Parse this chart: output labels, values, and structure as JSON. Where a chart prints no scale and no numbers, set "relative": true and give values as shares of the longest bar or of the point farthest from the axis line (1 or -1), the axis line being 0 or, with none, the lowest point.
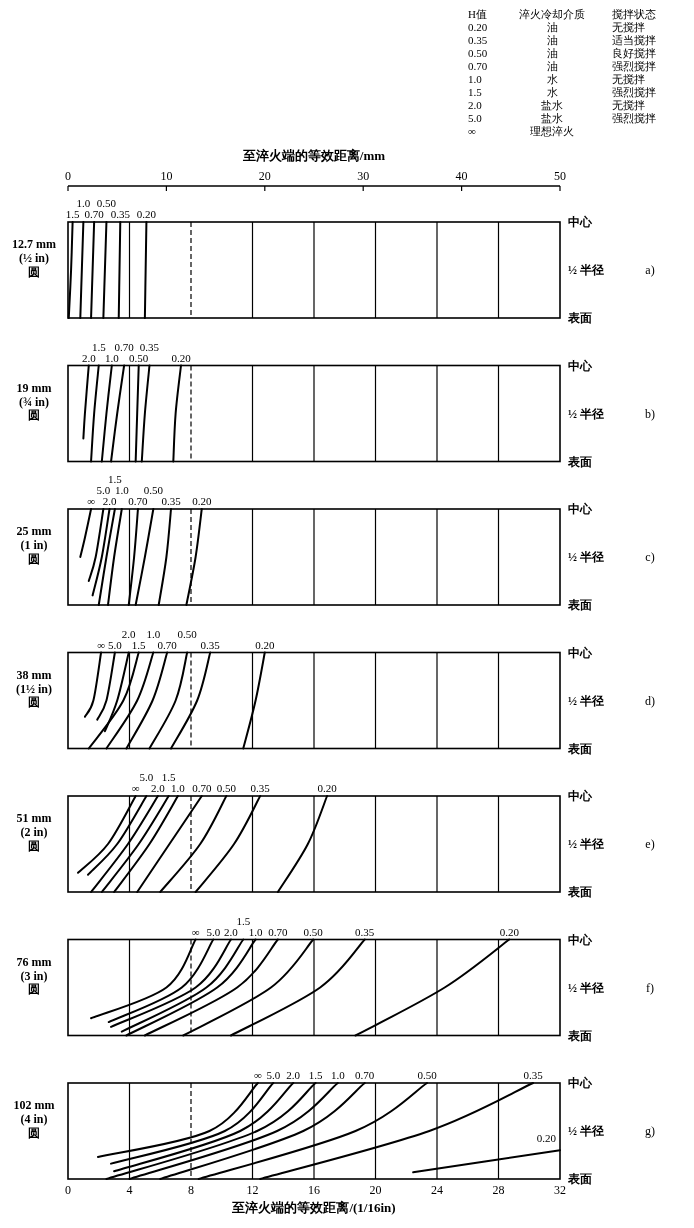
{
  "chart_data": [
    {
      "type": "other",
      "annotations": [
        "H值",
        "淬火冷却介质",
        "搅拌状态",
        "0.20",
        "油",
        "无搅拌",
        "0.35",
        "油",
        "适当搅拌",
        "0.50",
        "油",
        "良好搅拌",
        "0.70",
        "油",
        "强烈搅拌",
        "1.0",
        "水",
        "无搅拌",
        "1.5",
        "水",
        "强烈搅拌",
        "2.0",
        "盐水",
        "无搅拌",
        "5.0",
        "盐水",
        "强烈搅拌",
        "∞",
        "理想淬火"
      ]
    },
    {
      "type": "line",
      "y2label": "a)",
      "ylabel": "12.7 mm\n(½ in)\n圆",
      "x2label": "至淬火端的等效距离/mm",
      "xlim": [
        0,
        32
      ],
      "xticks": [
        0,
        4,
        8,
        12,
        16,
        20,
        24,
        28,
        32
      ],
      "x2lim": [
        0,
        50
      ],
      "x2ticks": [
        0,
        10,
        20,
        30,
        40,
        50
      ],
      "relative": true,
      "annotations": [
        "中心",
        "½ 半径",
        "表面"
      ],
      "grid": true,
      "tick_labels": false,
      "ref_lines": [
        {
          "axis": "x",
          "value": 8,
          "line_style": "dashed"
        }
      ],
      "series": [
        {
          "name": "1.5",
          "color": "#000000",
          "x": [
            0.05,
            0.2,
            0.3
          ],
          "values": [
            0,
            0.5,
            1
          ]
        },
        {
          "name": "1.0",
          "color": "#000000",
          "x": [
            0.8,
            0.9,
            1.0
          ],
          "values": [
            0,
            0.5,
            1
          ]
        },
        {
          "name": "0.70",
          "color": "#000000",
          "x": [
            1.5,
            1.6,
            1.7
          ],
          "values": [
            0,
            0.5,
            1
          ]
        },
        {
          "name": "0.50",
          "color": "#000000",
          "x": [
            2.3,
            2.4,
            2.5
          ],
          "values": [
            0,
            0.5,
            1
          ]
        },
        {
          "name": "0.35",
          "color": "#000000",
          "x": [
            3.3,
            3.35,
            3.4
          ],
          "values": [
            0,
            0.5,
            1
          ]
        },
        {
          "name": "0.20",
          "color": "#000000",
          "x": [
            5.0,
            5.05,
            5.1
          ],
          "values": [
            0,
            0.5,
            1
          ]
        }
      ]
    },
    {
      "type": "line",
      "y2label": "b)",
      "ylabel": "19 mm\n(¾ in)\n圆",
      "xlim": [
        0,
        32
      ],
      "xticks": [
        0,
        4,
        8,
        12,
        16,
        20,
        24,
        28,
        32
      ],
      "relative": true,
      "annotations": [
        "中心",
        "½ 半径",
        "表面"
      ],
      "grid": true,
      "tick_labels": false,
      "ref_lines": [
        {
          "axis": "x",
          "value": 8,
          "line_style": "dashed"
        }
      ],
      "series": [
        {
          "name": "2.0",
          "color": "#000000",
          "x": [
            1.0,
            1.1,
            1.35
          ],
          "values": [
            0.24,
            0.5,
            1
          ]
        },
        {
          "name": "1.5",
          "color": "#000000",
          "x": [
            1.5,
            1.7,
            2.0
          ],
          "values": [
            0,
            0.5,
            1
          ]
        },
        {
          "name": "1.0",
          "color": "#000000",
          "x": [
            2.2,
            2.5,
            2.85
          ],
          "values": [
            0,
            0.5,
            1
          ]
        },
        {
          "name": "0.70",
          "color": "#000000",
          "x": [
            2.8,
            3.2,
            3.65
          ],
          "values": [
            0,
            0.5,
            1
          ]
        },
        {
          "name": "0.50",
          "color": "#000000",
          "x": [
            4.4,
            4.5,
            4.6
          ],
          "values": [
            0,
            0.5,
            1
          ]
        },
        {
          "name": "0.35",
          "color": "#000000",
          "x": [
            4.8,
            5.0,
            5.3
          ],
          "values": [
            0,
            0.5,
            1
          ]
        },
        {
          "name": "0.20",
          "color": "#000000",
          "x": [
            6.85,
            7.0,
            7.35
          ],
          "values": [
            0,
            0.5,
            1
          ]
        }
      ]
    },
    {
      "type": "line",
      "y2label": "c)",
      "ylabel": "25 mm\n(1 in)\n圆",
      "xlim": [
        0,
        32
      ],
      "xticks": [
        0,
        4,
        8,
        12,
        16,
        20,
        24,
        28,
        32
      ],
      "relative": true,
      "annotations": [
        "中心",
        "½ 半径",
        "表面"
      ],
      "grid": true,
      "tick_labels": false,
      "ref_lines": [
        {
          "axis": "x",
          "value": 8,
          "line_style": "dashed"
        }
      ],
      "series": [
        {
          "name": "∞",
          "color": "#000000",
          "x": [
            0.8,
            1.1,
            1.5
          ],
          "values": [
            0.5,
            0.7,
            1
          ]
        },
        {
          "name": "5.0",
          "color": "#000000",
          "x": [
            1.35,
            1.8,
            2.3
          ],
          "values": [
            0.25,
            0.5,
            1
          ]
        },
        {
          "name": "2.0",
          "color": "#000000",
          "x": [
            1.6,
            2.2,
            2.7
          ],
          "values": [
            0.1,
            0.5,
            1
          ]
        },
        {
          "name": "1.5",
          "color": "#000000",
          "x": [
            2.0,
            2.5,
            3.05
          ],
          "values": [
            0,
            0.5,
            1
          ]
        },
        {
          "name": "1.0",
          "color": "#000000",
          "x": [
            2.6,
            3.0,
            3.5
          ],
          "values": [
            0,
            0.5,
            1
          ]
        },
        {
          "name": "0.70",
          "color": "#000000",
          "x": [
            3.95,
            4.3,
            4.55
          ],
          "values": [
            0,
            0.5,
            1
          ]
        },
        {
          "name": "0.50",
          "color": "#000000",
          "x": [
            4.4,
            5.0,
            5.55
          ],
          "values": [
            0,
            0.5,
            1
          ]
        },
        {
          "name": "0.35",
          "color": "#000000",
          "x": [
            5.9,
            6.4,
            6.7
          ],
          "values": [
            0,
            0.5,
            1
          ]
        },
        {
          "name": "0.20",
          "color": "#000000",
          "x": [
            7.7,
            8.3,
            8.7
          ],
          "values": [
            0,
            0.5,
            1
          ]
        }
      ]
    },
    {
      "type": "line",
      "y2label": "d)",
      "ylabel": "38 mm\n(1½ in)\n圆",
      "xlim": [
        0,
        32
      ],
      "xticks": [
        0,
        4,
        8,
        12,
        16,
        20,
        24,
        28,
        32
      ],
      "relative": true,
      "annotations": [
        "中心",
        "½ 半径",
        "表面"
      ],
      "grid": true,
      "tick_labels": false,
      "ref_lines": [
        {
          "axis": "x",
          "value": 8,
          "line_style": "dashed"
        }
      ],
      "series": [
        {
          "name": "∞",
          "color": "#000000",
          "x": [
            1.1,
            1.65,
            2.15
          ],
          "values": [
            0.33,
            0.5,
            1
          ]
        },
        {
          "name": "5.0",
          "color": "#000000",
          "x": [
            1.9,
            2.5,
            3.05
          ],
          "values": [
            0.3,
            0.5,
            1
          ]
        },
        {
          "name": "2.0",
          "color": "#000000",
          "x": [
            2.4,
            3.2,
            3.95
          ],
          "values": [
            0.18,
            0.5,
            1
          ]
        },
        {
          "name": "1.5",
          "color": "#000000",
          "x": [
            1.35,
            3.6,
            4.6
          ],
          "values": [
            0,
            0.5,
            1
          ]
        },
        {
          "name": "1.0",
          "color": "#000000",
          "x": [
            2.5,
            4.5,
            5.55
          ],
          "values": [
            0,
            0.5,
            1
          ]
        },
        {
          "name": "0.70",
          "color": "#000000",
          "x": [
            3.8,
            5.5,
            6.45
          ],
          "values": [
            0,
            0.5,
            1
          ]
        },
        {
          "name": "0.50",
          "color": "#000000",
          "x": [
            5.3,
            7.0,
            7.75
          ],
          "values": [
            0,
            0.5,
            1
          ]
        },
        {
          "name": "0.35",
          "color": "#000000",
          "x": [
            6.7,
            8.4,
            9.25
          ],
          "values": [
            0,
            0.5,
            1
          ]
        },
        {
          "name": "0.20",
          "color": "#000000",
          "x": [
            11.4,
            12.2,
            12.8
          ],
          "values": [
            0,
            0.5,
            1
          ]
        }
      ]
    },
    {
      "type": "line",
      "y2label": "e)",
      "ylabel": "51 mm\n(2 in)\n圆",
      "xlim": [
        0,
        32
      ],
      "xticks": [
        0,
        4,
        8,
        12,
        16,
        20,
        24,
        28,
        32
      ],
      "relative": true,
      "annotations": [
        "中心",
        "½ 半径",
        "表面"
      ],
      "grid": true,
      "tick_labels": false,
      "ref_lines": [
        {
          "axis": "x",
          "value": 8,
          "line_style": "dashed"
        }
      ],
      "series": [
        {
          "name": "∞",
          "color": "#000000",
          "x": [
            0.65,
            2.6,
            4.4
          ],
          "values": [
            0.2,
            0.5,
            1
          ]
        },
        {
          "name": "5.0",
          "color": "#000000",
          "x": [
            1.3,
            3.2,
            5.1
          ],
          "values": [
            0.18,
            0.5,
            1
          ]
        },
        {
          "name": "2.0",
          "color": "#000000",
          "x": [
            1.5,
            3.9,
            5.85
          ],
          "values": [
            0,
            0.5,
            1
          ]
        },
        {
          "name": "1.5",
          "color": "#000000",
          "x": [
            2.2,
            4.6,
            6.55
          ],
          "values": [
            0,
            0.5,
            1
          ]
        },
        {
          "name": "1.0",
          "color": "#000000",
          "x": [
            3.0,
            5.3,
            7.15
          ],
          "values": [
            0,
            0.5,
            1
          ]
        },
        {
          "name": "0.70",
          "color": "#000000",
          "x": [
            4.5,
            6.6,
            8.7
          ],
          "values": [
            0,
            0.5,
            1
          ]
        },
        {
          "name": "0.50",
          "color": "#000000",
          "x": [
            6.0,
            8.6,
            10.3
          ],
          "values": [
            0,
            0.5,
            1
          ]
        },
        {
          "name": "0.35",
          "color": "#000000",
          "x": [
            8.3,
            10.8,
            12.5
          ],
          "values": [
            0,
            0.5,
            1
          ]
        },
        {
          "name": "0.20",
          "color": "#000000",
          "x": [
            13.65,
            15.6,
            16.85
          ],
          "values": [
            0,
            0.5,
            1
          ]
        }
      ]
    },
    {
      "type": "line",
      "y2label": "f)",
      "ylabel": "76 mm\n(3 in)\n圆",
      "xlim": [
        0,
        32
      ],
      "xticks": [
        0,
        4,
        8,
        12,
        16,
        20,
        24,
        28,
        32
      ],
      "relative": true,
      "annotations": [
        "中心",
        "½ 半径",
        "表面"
      ],
      "grid": true,
      "tick_labels": false,
      "ref_lines": [
        {
          "axis": "x",
          "value": 8,
          "line_style": "dashed"
        }
      ],
      "series": [
        {
          "name": "∞",
          "color": "#000000",
          "x": [
            1.5,
            6.4,
            8.3
          ],
          "values": [
            0.18,
            0.5,
            1
          ]
        },
        {
          "name": "5.0",
          "color": "#000000",
          "x": [
            2.65,
            7.4,
            9.45
          ],
          "values": [
            0.14,
            0.5,
            1
          ]
        },
        {
          "name": "2.0",
          "color": "#000000",
          "x": [
            2.8,
            8.3,
            10.6
          ],
          "values": [
            0.09,
            0.5,
            1
          ]
        },
        {
          "name": "1.5",
          "color": "#000000",
          "x": [
            3.5,
            9.0,
            11.4
          ],
          "values": [
            0.04,
            0.5,
            1
          ]
        },
        {
          "name": "1.0",
          "color": "#000000",
          "x": [
            3.8,
            9.7,
            12.2
          ],
          "values": [
            0,
            0.5,
            1
          ]
        },
        {
          "name": "0.70",
          "color": "#000000",
          "x": [
            5.0,
            11.0,
            13.65
          ],
          "values": [
            0,
            0.5,
            1
          ]
        },
        {
          "name": "0.50",
          "color": "#000000",
          "x": [
            7.5,
            13.2,
            15.95
          ],
          "values": [
            0,
            0.5,
            1
          ]
        },
        {
          "name": "0.35",
          "color": "#000000",
          "x": [
            10.6,
            16.4,
            19.3
          ],
          "values": [
            0,
            0.5,
            1
          ]
        },
        {
          "name": "0.20",
          "color": "#000000",
          "x": [
            18.7,
            24.5,
            28.7
          ],
          "values": [
            0,
            0.5,
            1
          ]
        }
      ]
    },
    {
      "type": "line",
      "y2label": "g)",
      "ylabel": "102 mm\n(4 in)\n圆",
      "xlabel": "至淬火端的等效距离/(1/16in)",
      "xlim": [
        0,
        32
      ],
      "xticks": [
        0,
        4,
        8,
        12,
        16,
        20,
        24,
        28,
        32
      ],
      "relative": true,
      "annotations": [
        "中心",
        "½ 半径",
        "表面"
      ],
      "grid": true,
      "tick_labels": "x",
      "ref_lines": [
        {
          "axis": "x",
          "value": 8,
          "line_style": "dashed"
        }
      ],
      "series": [
        {
          "name": "∞",
          "color": "#000000",
          "x": [
            1.95,
            9.2,
            12.35
          ],
          "values": [
            0.23,
            0.5,
            1
          ]
        },
        {
          "name": "5.0",
          "color": "#000000",
          "x": [
            2.8,
            10.2,
            13.35
          ],
          "values": [
            0.16,
            0.5,
            1
          ]
        },
        {
          "name": "2.0",
          "color": "#000000",
          "x": [
            3.0,
            11.2,
            14.65
          ],
          "values": [
            0.08,
            0.5,
            1
          ]
        },
        {
          "name": "1.5",
          "color": "#000000",
          "x": [
            2.5,
            12.3,
            16.1
          ],
          "values": [
            0,
            0.5,
            1
          ]
        },
        {
          "name": "1.0",
          "color": "#000000",
          "x": [
            4.0,
            13.6,
            17.55
          ],
          "values": [
            0,
            0.5,
            1
          ]
        },
        {
          "name": "0.70",
          "color": "#000000",
          "x": [
            6.0,
            15.3,
            19.3
          ],
          "values": [
            0,
            0.5,
            1
          ]
        },
        {
          "name": "0.50",
          "color": "#000000",
          "x": [
            8.5,
            18.7,
            23.35
          ],
          "values": [
            0,
            0.5,
            1
          ]
        },
        {
          "name": "0.35",
          "color": "#000000",
          "x": [
            12.5,
            23.5,
            30.25
          ],
          "values": [
            0,
            0.5,
            1
          ]
        },
        {
          "name": "0.20",
          "color": "#000000",
          "x": [
            22.45,
            32
          ],
          "values": [
            0.07,
            0.3
          ]
        }
      ]
    }
  ]
}
